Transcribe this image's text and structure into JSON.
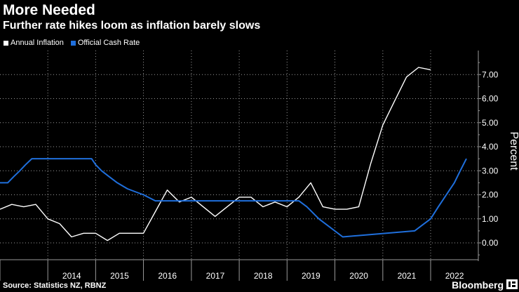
{
  "header": {
    "title": "More Needed",
    "subtitle": "Further rate hikes loom as inflation barely slows"
  },
  "footer": {
    "source": "Source: Statistics NZ, RBNZ",
    "brand": "Bloomberg"
  },
  "colors": {
    "background": "#000000",
    "annual_inflation": "#ffffff",
    "official_cash_rate": "#1f6fdc",
    "grid": "#9a9a9a"
  },
  "chart_data": {
    "type": "line",
    "title": "More Needed",
    "subtitle": "Further rate hikes loom as inflation barely slows",
    "ylabel": "Percent",
    "ylim": [
      -0.7,
      8.0
    ],
    "xlim": [
      "2013-01-01",
      "2022-12-31"
    ],
    "yticks": [
      0,
      1,
      2,
      3,
      4,
      5,
      6,
      7
    ],
    "ytick_labels": [
      "0.00",
      "1.00",
      "2.00",
      "3.00",
      "4.00",
      "5.00",
      "6.00",
      "7.00"
    ],
    "xtick_labels": [
      "2014",
      "2015",
      "2016",
      "2017",
      "2018",
      "2019",
      "2020",
      "2021",
      "2022"
    ],
    "grid": true,
    "legend_position": "top-left",
    "series": [
      {
        "name": "Annual Inflation",
        "color": "#ffffff",
        "points": [
          [
            "2013-01-01",
            1.4
          ],
          [
            "2013-04-01",
            1.6
          ],
          [
            "2013-07-01",
            1.5
          ],
          [
            "2013-10-01",
            1.6
          ],
          [
            "2014-01-01",
            1.0
          ],
          [
            "2014-04-01",
            0.8
          ],
          [
            "2014-07-01",
            0.25
          ],
          [
            "2014-10-01",
            0.4
          ],
          [
            "2015-01-01",
            0.4
          ],
          [
            "2015-04-01",
            0.1
          ],
          [
            "2015-07-01",
            0.4
          ],
          [
            "2015-10-01",
            0.4
          ],
          [
            "2016-01-01",
            0.4
          ],
          [
            "2016-04-01",
            1.3
          ],
          [
            "2016-07-01",
            2.2
          ],
          [
            "2016-10-01",
            1.7
          ],
          [
            "2017-01-01",
            1.9
          ],
          [
            "2017-04-01",
            1.5
          ],
          [
            "2017-07-01",
            1.1
          ],
          [
            "2017-10-01",
            1.5
          ],
          [
            "2018-01-01",
            1.9
          ],
          [
            "2018-04-01",
            1.9
          ],
          [
            "2018-07-01",
            1.5
          ],
          [
            "2018-10-01",
            1.7
          ],
          [
            "2019-01-01",
            1.5
          ],
          [
            "2019-04-01",
            1.9
          ],
          [
            "2019-07-01",
            2.5
          ],
          [
            "2019-10-01",
            1.5
          ],
          [
            "2020-01-01",
            1.4
          ],
          [
            "2020-04-01",
            1.4
          ],
          [
            "2020-07-01",
            1.5
          ],
          [
            "2020-10-01",
            3.3
          ],
          [
            "2021-01-01",
            4.9
          ],
          [
            "2021-04-01",
            5.9
          ],
          [
            "2021-07-01",
            6.9
          ],
          [
            "2021-10-01",
            7.3
          ],
          [
            "2022-01-01",
            7.2
          ]
        ]
      },
      {
        "name": "Official Cash Rate",
        "color": "#1f6fdc",
        "points": [
          [
            "2013-01-01",
            2.5
          ],
          [
            "2013-03-01",
            2.5
          ],
          [
            "2013-04-15",
            2.75
          ],
          [
            "2013-06-01",
            3.0
          ],
          [
            "2013-07-15",
            3.25
          ],
          [
            "2013-09-01",
            3.5
          ],
          [
            "2014-12-01",
            3.5
          ],
          [
            "2015-01-01",
            3.25
          ],
          [
            "2015-02-15",
            3.0
          ],
          [
            "2015-04-15",
            2.75
          ],
          [
            "2015-06-15",
            2.5
          ],
          [
            "2015-09-01",
            2.25
          ],
          [
            "2016-01-01",
            2.0
          ],
          [
            "2016-04-01",
            1.75
          ],
          [
            "2019-04-01",
            1.75
          ],
          [
            "2019-06-01",
            1.5
          ],
          [
            "2019-09-01",
            1.0
          ],
          [
            "2020-03-01",
            0.25
          ],
          [
            "2021-09-01",
            0.5
          ],
          [
            "2021-11-01",
            0.75
          ],
          [
            "2022-01-01",
            1.0
          ],
          [
            "2022-03-01",
            1.5
          ],
          [
            "2022-05-01",
            2.0
          ],
          [
            "2022-07-01",
            2.5
          ],
          [
            "2022-08-15",
            3.0
          ],
          [
            "2022-10-01",
            3.5
          ]
        ]
      }
    ]
  }
}
